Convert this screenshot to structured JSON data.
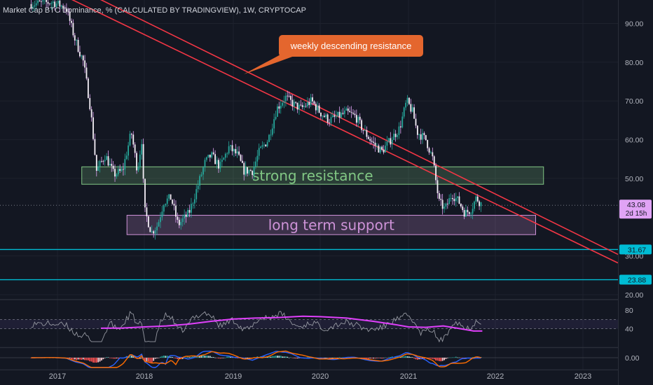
{
  "chart_data": {
    "type": "candlestick",
    "title": "Market Cap BTC Dominance, % (CALCULATED BY TRADINGVIEW), 1W, CRYPTOCAP",
    "x_ticks": [
      "2017",
      "2018",
      "2019",
      "2020",
      "2021",
      "2022",
      "2023"
    ],
    "y_ticks": [
      "90.00",
      "80.00",
      "70.00",
      "60.00",
      "50.00",
      "30.00",
      "20.00"
    ],
    "y_range": [
      18,
      96
    ],
    "current_price": {
      "value": "43.08",
      "countdown": "2d 15h",
      "color": "#e0a3f5"
    },
    "horizontal_levels": [
      {
        "label": "31.67",
        "value": 31.67,
        "color": "#00bcd4"
      },
      {
        "label": "23.88",
        "value": 23.88,
        "color": "#00bcd4"
      }
    ],
    "price_path": [
      [
        2016.7,
        95
      ],
      [
        2016.95,
        95.5
      ],
      [
        2017.1,
        94
      ],
      [
        2017.2,
        86
      ],
      [
        2017.3,
        80
      ],
      [
        2017.38,
        68
      ],
      [
        2017.45,
        52
      ],
      [
        2017.55,
        56
      ],
      [
        2017.65,
        51
      ],
      [
        2017.75,
        52
      ],
      [
        2017.85,
        62
      ],
      [
        2017.92,
        52
      ],
      [
        2017.97,
        60
      ],
      [
        2018.0,
        42
      ],
      [
        2018.08,
        36
      ],
      [
        2018.15,
        38
      ],
      [
        2018.22,
        44
      ],
      [
        2018.3,
        45
      ],
      [
        2018.38,
        38
      ],
      [
        2018.5,
        41
      ],
      [
        2018.6,
        48
      ],
      [
        2018.68,
        54
      ],
      [
        2018.75,
        56
      ],
      [
        2018.85,
        53
      ],
      [
        2018.95,
        58
      ],
      [
        2019.05,
        56
      ],
      [
        2019.12,
        52
      ],
      [
        2019.22,
        52
      ],
      [
        2019.3,
        57
      ],
      [
        2019.4,
        60
      ],
      [
        2019.5,
        68
      ],
      [
        2019.6,
        71
      ],
      [
        2019.7,
        69
      ],
      [
        2019.78,
        68
      ],
      [
        2019.9,
        70
      ],
      [
        2020.0,
        67
      ],
      [
        2020.1,
        65
      ],
      [
        2020.2,
        66
      ],
      [
        2020.3,
        67
      ],
      [
        2020.4,
        66
      ],
      [
        2020.5,
        62
      ],
      [
        2020.6,
        59
      ],
      [
        2020.7,
        57
      ],
      [
        2020.8,
        60
      ],
      [
        2020.9,
        63
      ],
      [
        2020.98,
        70
      ],
      [
        2021.05,
        67
      ],
      [
        2021.1,
        62
      ],
      [
        2021.2,
        60
      ],
      [
        2021.28,
        55
      ],
      [
        2021.35,
        44
      ],
      [
        2021.42,
        42
      ],
      [
        2021.5,
        46
      ],
      [
        2021.58,
        44
      ],
      [
        2021.65,
        41
      ],
      [
        2021.72,
        42
      ],
      [
        2021.78,
        45
      ],
      [
        2021.85,
        43.08
      ]
    ],
    "annotations": [
      {
        "text": "weekly descending resistance",
        "type": "callout",
        "color": "#e4662e"
      },
      {
        "text": "strong resistance",
        "type": "zone",
        "from": 48.5,
        "to": 53,
        "x_from": 2017.28,
        "x_to": 2022.55,
        "color": "#81c784"
      },
      {
        "text": "long term support",
        "type": "zone",
        "from": 35.5,
        "to": 40.5,
        "x_from": 2017.8,
        "x_to": 2022.46,
        "color": "#ce93d8"
      }
    ],
    "trendlines": [
      {
        "from": [
          2016.95,
          98.5
        ],
        "to": [
          2023.4,
          28.2
        ],
        "color": "#f23645"
      },
      {
        "from": [
          2016.95,
          102.2
        ],
        "to": [
          2023.4,
          30.4
        ],
        "color": "#f23645"
      }
    ],
    "rsi": {
      "y_ticks": [
        "80",
        "40"
      ],
      "band": [
        40,
        60
      ],
      "ma_path": [
        [
          2017.5,
          41
        ],
        [
          2017.75,
          41.5
        ],
        [
          2018.0,
          44
        ],
        [
          2018.25,
          46
        ],
        [
          2018.5,
          50
        ],
        [
          2018.75,
          56
        ],
        [
          2019.0,
          61
        ],
        [
          2019.25,
          63
        ],
        [
          2019.5,
          64
        ],
        [
          2019.8,
          67
        ],
        [
          2020.0,
          66
        ],
        [
          2020.3,
          63
        ],
        [
          2020.6,
          56
        ],
        [
          2020.85,
          49
        ],
        [
          2021.0,
          44
        ],
        [
          2021.2,
          43
        ],
        [
          2021.4,
          46
        ],
        [
          2021.6,
          40
        ],
        [
          2021.75,
          35
        ],
        [
          2021.85,
          35
        ]
      ]
    },
    "macd": {
      "y_ticks": [
        "0.00"
      ]
    }
  }
}
